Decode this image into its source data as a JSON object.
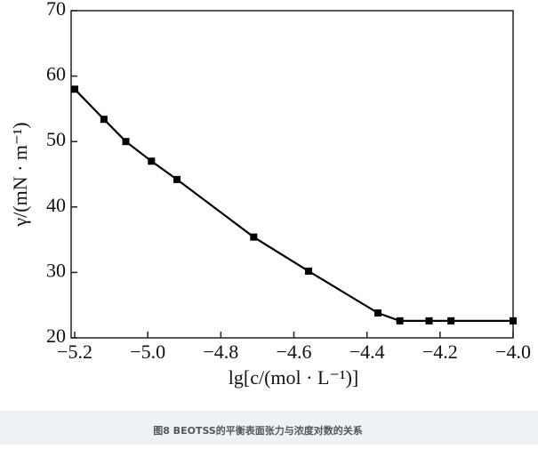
{
  "chart_data": {
    "type": "line",
    "x_label": "lg[c/(mol · L⁻¹)]",
    "y_label": "γ/(mN · m⁻¹)",
    "caption": "图8 BEOTSS的平衡表面张力与浓度对数的关系",
    "x": [
      -5.2,
      -5.12,
      -5.06,
      -4.99,
      -4.92,
      -4.71,
      -4.56,
      -4.37,
      -4.31,
      -4.23,
      -4.17,
      -4.0
    ],
    "series": [
      {
        "color": "#000000",
        "values": [
          58.0,
          53.4,
          50.0,
          47.0,
          44.2,
          35.4,
          30.2,
          23.8,
          22.6,
          22.6,
          22.6,
          22.6
        ]
      }
    ],
    "xlim": [
      -5.2,
      -4.0
    ],
    "ylim": [
      20,
      70
    ],
    "xticks": [
      {
        "value": -5.2,
        "label": "−5.2"
      },
      {
        "value": -5.0,
        "label": "−5.0"
      },
      {
        "value": -4.8,
        "label": "−4.8"
      },
      {
        "value": -4.6,
        "label": "−4.6"
      },
      {
        "value": -4.4,
        "label": "−4.4"
      },
      {
        "value": -4.2,
        "label": "−4.2"
      },
      {
        "value": -4.0,
        "label": "−4.0"
      }
    ],
    "yticks": [
      20,
      30,
      40,
      50,
      60,
      70
    ]
  }
}
